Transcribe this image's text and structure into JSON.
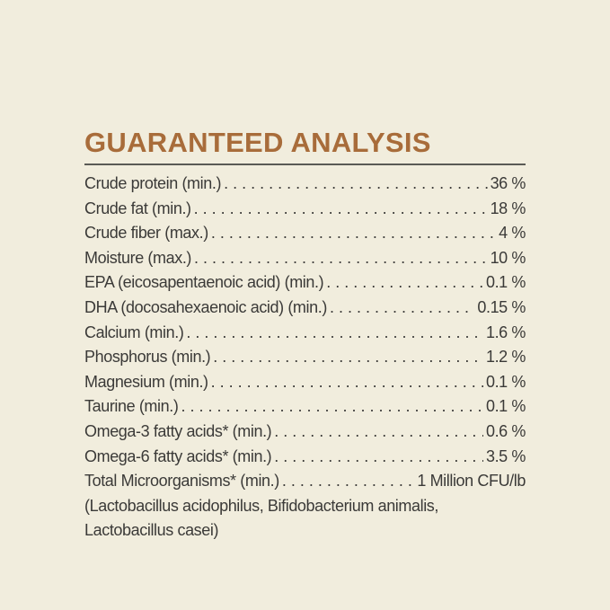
{
  "title": "GUARANTEED ANALYSIS",
  "colors": {
    "background": "#f1eddd",
    "heading": "#a86c3a",
    "text": "#3b3a38"
  },
  "rows": [
    {
      "label": "Crude protein (min.)",
      "value": "36 %"
    },
    {
      "label": "Crude fat (min.)",
      "value": "18 %"
    },
    {
      "label": "Crude fiber (max.)",
      "value": "4 %"
    },
    {
      "label": "Moisture (max.)",
      "value": "10 %"
    },
    {
      "label": "EPA (eicosapentaenoic acid) (min.)",
      "value": "0.1 %"
    },
    {
      "label": "DHA (docosahexaenoic acid) (min.)",
      "value": "0.15 %"
    },
    {
      "label": "Calcium (min.)",
      "value": "1.6 %"
    },
    {
      "label": "Phosphorus (min.)",
      "value": "1.2 %"
    },
    {
      "label": "Magnesium (min.)",
      "value": "0.1 %"
    },
    {
      "label": "Taurine (min.)",
      "value": "0.1 %"
    },
    {
      "label": "Omega-3 fatty acids* (min.)",
      "value": "0.6 %"
    },
    {
      "label": "Omega-6 fatty acids* (min.)",
      "value": "3.5 %"
    },
    {
      "label": "Total Microorganisms* (min.)",
      "value": "1 Million CFU/lb"
    }
  ],
  "note_lines": [
    "(Lactobacillus acidophilus, Bifidobacterium animalis,",
    "Lactobacillus casei)"
  ]
}
